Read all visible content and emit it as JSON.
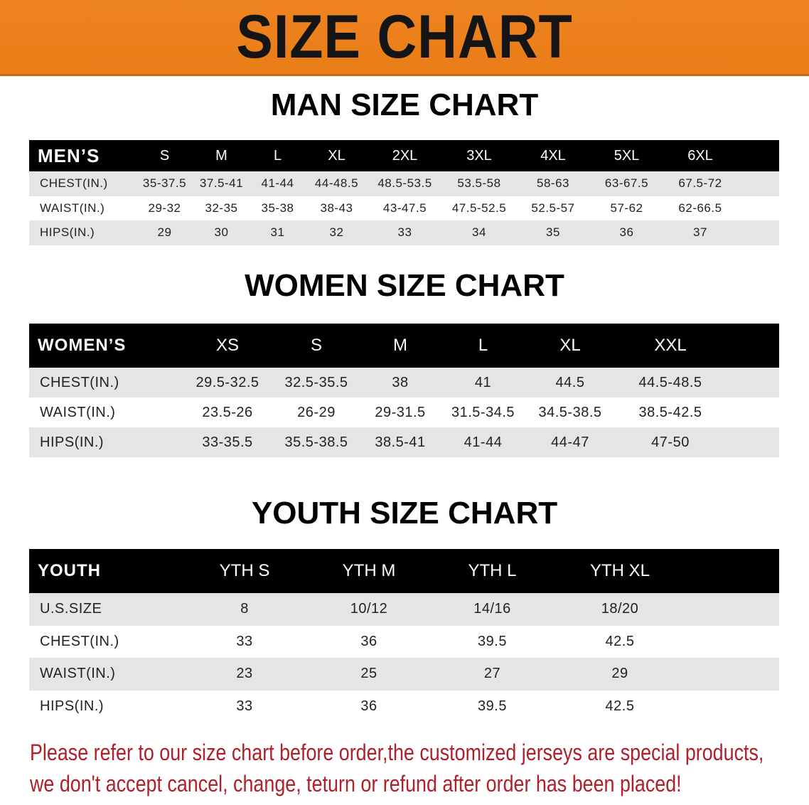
{
  "banner": {
    "title": "SIZE CHART",
    "color": "#eb8020"
  },
  "men": {
    "title": "MAN SIZE CHART",
    "header": "MEN’S",
    "sizes": [
      "S",
      "M",
      "L",
      "XL",
      "2XL",
      "3XL",
      "4XL",
      "5XL",
      "6XL"
    ],
    "rows": [
      {
        "label": "CHEST(IN.)",
        "values": [
          "35-37.5",
          "37.5-41",
          "41-44",
          "44-48.5",
          "48.5-53.5",
          "53.5-58",
          "58-63",
          "63-67.5",
          "67.5-72"
        ]
      },
      {
        "label": "WAIST(IN.)",
        "values": [
          "29-32",
          "32-35",
          "35-38",
          "38-43",
          "43-47.5",
          "47.5-52.5",
          "52.5-57",
          "57-62",
          "62-66.5"
        ]
      },
      {
        "label": "HIPS(IN.)",
        "values": [
          "29",
          "30",
          "31",
          "32",
          "33",
          "34",
          "35",
          "36",
          "37"
        ]
      }
    ]
  },
  "women": {
    "title": "WOMEN SIZE CHART",
    "header": "WOMEN’S",
    "sizes": [
      "XS",
      "S",
      "M",
      "L",
      "XL",
      "XXL"
    ],
    "rows": [
      {
        "label": "CHEST(IN.)",
        "values": [
          "29.5-32.5",
          "32.5-35.5",
          "38",
          "41",
          "44.5",
          "44.5-48.5"
        ]
      },
      {
        "label": "WAIST(IN.)",
        "values": [
          "23.5-26",
          "26-29",
          "29-31.5",
          "31.5-34.5",
          "34.5-38.5",
          "38.5-42.5"
        ]
      },
      {
        "label": "HIPS(IN.)",
        "values": [
          "33-35.5",
          "35.5-38.5",
          "38.5-41",
          "41-44",
          "44-47",
          "47-50"
        ]
      }
    ]
  },
  "youth": {
    "title": "YOUTH SIZE CHART",
    "header": "YOUTH",
    "sizes": [
      "YTH S",
      "YTH M",
      "YTH L",
      "YTH XL"
    ],
    "rows": [
      {
        "label": "U.S.SIZE",
        "values": [
          "8",
          "10/12",
          "14/16",
          "18/20"
        ]
      },
      {
        "label": "CHEST(IN.)",
        "values": [
          "33",
          "36",
          "39.5",
          "42.5"
        ]
      },
      {
        "label": "WAIST(IN.)",
        "values": [
          "23",
          "25",
          "27",
          "29"
        ]
      },
      {
        "label": "HIPS(IN.)",
        "values": [
          "33",
          "36",
          "39.5",
          "42.5"
        ]
      }
    ]
  },
  "note": {
    "line1": "Please refer to our size chart before order,the customized jerseys are special products,",
    "line2": "we don't accept cancel, change, teturn or refund after order has been placed!",
    "color": "#b0202a"
  }
}
